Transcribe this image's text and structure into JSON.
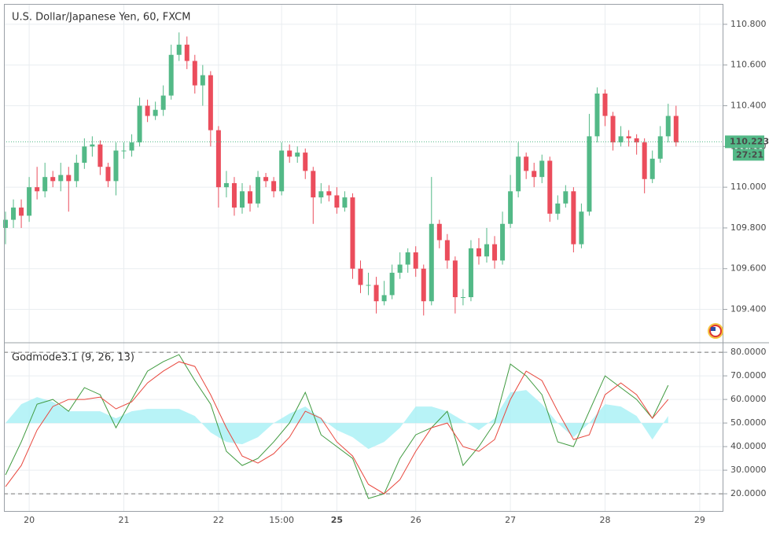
{
  "chart_data": [
    {
      "type": "candlestick",
      "title": "U.S. Dollar/Japanese Yen, 60, FXCM",
      "up_color": "#53b987",
      "down_color": "#eb4d5c",
      "grid": true,
      "xlim": [
        -0.2,
        91
      ],
      "xticks": [
        {
          "value": 3,
          "label": "20"
        },
        {
          "value": 15,
          "label": "21"
        },
        {
          "value": 27,
          "label": "22"
        },
        {
          "value": 35,
          "label": "15:00"
        },
        {
          "value": 42,
          "label": "25"
        },
        {
          "value": 52,
          "label": "26"
        },
        {
          "value": 64,
          "label": "27"
        },
        {
          "value": 76,
          "label": "28"
        },
        {
          "value": 88,
          "label": "29"
        }
      ],
      "ylim": [
        109.24,
        110.9
      ],
      "yticks": [
        {
          "value": 109.4,
          "label": "109.400"
        },
        {
          "value": 109.6,
          "label": "109.600"
        },
        {
          "value": 109.8,
          "label": "109.800"
        },
        {
          "value": 110.0,
          "label": "110.000"
        },
        {
          "value": 110.2,
          "label": "110.200"
        },
        {
          "value": 110.4,
          "label": "110.400"
        },
        {
          "value": 110.6,
          "label": "110.600"
        },
        {
          "value": 110.8,
          "label": "110.800"
        }
      ],
      "last_price": {
        "value": 110.223,
        "label": "110.223"
      },
      "countdown": "27:21",
      "open": [
        109.8,
        109.84,
        109.9,
        109.86,
        110.0,
        109.98,
        110.05,
        110.03,
        110.06,
        110.03,
        110.12,
        110.2,
        110.21,
        110.1,
        110.03,
        110.18,
        110.18,
        110.22,
        110.4,
        110.35,
        110.38,
        110.45,
        110.65,
        110.7,
        110.62,
        110.5,
        110.55,
        110.28,
        110.0,
        110.02,
        109.9,
        109.98,
        109.92,
        110.05,
        110.03,
        109.98,
        110.18,
        110.15,
        110.17,
        110.08,
        109.95,
        109.98,
        109.96,
        109.9,
        109.95,
        109.6,
        109.52,
        109.52,
        109.44,
        109.47,
        109.58,
        109.62,
        109.68,
        109.6,
        109.44,
        109.82,
        109.74,
        109.64,
        109.46,
        109.46,
        109.7,
        109.66,
        109.72,
        109.64,
        109.82,
        109.98,
        110.15,
        110.08,
        110.05,
        110.13,
        109.87,
        109.92,
        109.98,
        109.72,
        109.88,
        110.25,
        110.46,
        110.35,
        110.22,
        110.25,
        110.24,
        110.22,
        110.04,
        110.14,
        110.25,
        110.35
      ],
      "high": [
        109.88,
        109.94,
        109.94,
        110.05,
        110.1,
        110.12,
        110.08,
        110.12,
        110.1,
        110.16,
        110.24,
        110.25,
        110.23,
        110.12,
        110.22,
        110.22,
        110.26,
        110.44,
        110.43,
        110.42,
        110.5,
        110.7,
        110.76,
        110.74,
        110.65,
        110.6,
        110.57,
        110.3,
        110.08,
        110.05,
        110.02,
        110.01,
        110.08,
        110.07,
        110.05,
        110.22,
        110.21,
        110.2,
        110.19,
        110.1,
        110.02,
        110.01,
        110.0,
        109.98,
        109.97,
        109.64,
        109.58,
        109.56,
        109.54,
        109.62,
        109.68,
        109.7,
        109.71,
        109.62,
        110.05,
        109.84,
        109.77,
        109.66,
        109.5,
        109.74,
        109.75,
        109.8,
        109.76,
        109.88,
        110.06,
        110.22,
        110.17,
        110.12,
        110.16,
        110.15,
        109.96,
        110.01,
        110.0,
        109.92,
        110.36,
        110.49,
        110.48,
        110.37,
        110.3,
        110.28,
        110.26,
        110.24,
        110.18,
        110.3,
        110.41,
        110.4
      ],
      "low": [
        109.72,
        109.8,
        109.8,
        109.83,
        109.94,
        109.95,
        110.0,
        109.98,
        109.88,
        110.0,
        110.09,
        110.15,
        110.06,
        110.0,
        109.96,
        110.14,
        110.15,
        110.2,
        110.32,
        110.33,
        110.35,
        110.43,
        110.62,
        110.58,
        110.46,
        110.4,
        110.2,
        109.9,
        109.95,
        109.86,
        109.87,
        109.88,
        109.9,
        110.0,
        109.95,
        109.96,
        110.12,
        110.12,
        110.04,
        109.82,
        109.92,
        109.93,
        109.87,
        109.88,
        109.55,
        109.48,
        109.47,
        109.38,
        109.42,
        109.45,
        109.55,
        109.58,
        109.56,
        109.37,
        109.42,
        109.7,
        109.6,
        109.38,
        109.42,
        109.44,
        109.62,
        109.63,
        109.6,
        109.62,
        109.8,
        109.95,
        110.04,
        110.0,
        110.02,
        109.83,
        109.84,
        109.9,
        109.68,
        109.7,
        109.86,
        110.22,
        110.3,
        110.18,
        110.2,
        110.2,
        110.16,
        109.97,
        110.02,
        110.12,
        110.22,
        110.2
      ],
      "close": [
        109.84,
        109.9,
        109.86,
        110.0,
        109.98,
        110.05,
        110.03,
        110.06,
        110.03,
        110.12,
        110.2,
        110.21,
        110.1,
        110.03,
        110.18,
        110.18,
        110.22,
        110.4,
        110.35,
        110.38,
        110.45,
        110.65,
        110.7,
        110.62,
        110.5,
        110.55,
        110.28,
        110.0,
        110.02,
        109.9,
        109.98,
        109.92,
        110.05,
        110.03,
        109.98,
        110.18,
        110.15,
        110.17,
        110.08,
        109.95,
        109.98,
        109.96,
        109.9,
        109.95,
        109.6,
        109.52,
        109.52,
        109.44,
        109.47,
        109.58,
        109.62,
        109.68,
        109.6,
        109.44,
        109.82,
        109.74,
        109.64,
        109.46,
        109.46,
        109.7,
        109.66,
        109.72,
        109.64,
        109.82,
        109.98,
        110.15,
        110.08,
        110.05,
        110.13,
        109.87,
        109.92,
        109.98,
        109.72,
        109.88,
        110.25,
        110.46,
        110.35,
        110.22,
        110.25,
        110.24,
        110.22,
        110.04,
        110.14,
        110.25,
        110.35,
        110.22
      ]
    },
    {
      "type": "line",
      "title": "Godmode3.1 (9, 26, 13)",
      "grid": true,
      "ylim": [
        12.7,
        83.7
      ],
      "yticks": [
        {
          "value": 20,
          "label": "20.0000"
        },
        {
          "value": 30,
          "label": "30.0000"
        },
        {
          "value": 40,
          "label": "40.0000"
        },
        {
          "value": 50,
          "label": "50.0000"
        },
        {
          "value": 60,
          "label": "60.0000"
        },
        {
          "value": 70,
          "label": "70.0000"
        },
        {
          "value": 80,
          "label": "80.0000"
        }
      ],
      "levels": [
        20,
        80
      ],
      "x": [
        0,
        2,
        4,
        6,
        8,
        10,
        12,
        14,
        16,
        18,
        20,
        22,
        24,
        26,
        28,
        30,
        32,
        34,
        36,
        38,
        40,
        42,
        44,
        46,
        48,
        50,
        52,
        54,
        56,
        58,
        60,
        62,
        64,
        66,
        68,
        70,
        72,
        74,
        76,
        78,
        80,
        82,
        84
      ],
      "cloud": {
        "color": "#a6f0f5",
        "base": 50,
        "values": [
          50,
          58,
          61,
          59,
          55,
          55,
          55,
          52,
          55,
          56,
          56,
          56,
          53,
          46,
          42,
          41,
          44,
          50,
          54,
          57,
          52,
          47,
          44,
          39,
          42,
          48,
          57,
          57,
          55,
          51,
          47,
          52,
          63,
          64,
          58,
          50,
          44,
          50,
          58,
          57,
          53,
          43,
          53
        ]
      },
      "series": [
        {
          "color": "#3f9a3f",
          "values": [
            28,
            42,
            58,
            60,
            55,
            65,
            62,
            48,
            60,
            72,
            76,
            79,
            68,
            58,
            38,
            32,
            35,
            42,
            50,
            63,
            45,
            40,
            35,
            18,
            20,
            35,
            45,
            48,
            55,
            32,
            40,
            50,
            75,
            70,
            62,
            42,
            40,
            55,
            70,
            65,
            60,
            52,
            66
          ]
        },
        {
          "color": "#e8473d",
          "values": [
            23,
            32,
            47,
            57,
            60,
            60,
            61,
            56,
            59,
            67,
            72,
            76,
            74,
            62,
            48,
            36,
            33,
            37,
            44,
            55,
            52,
            42,
            36,
            24,
            20,
            26,
            38,
            48,
            50,
            40,
            38,
            43,
            60,
            72,
            68,
            55,
            43,
            45,
            62,
            67,
            62,
            52,
            60
          ]
        }
      ]
    }
  ]
}
